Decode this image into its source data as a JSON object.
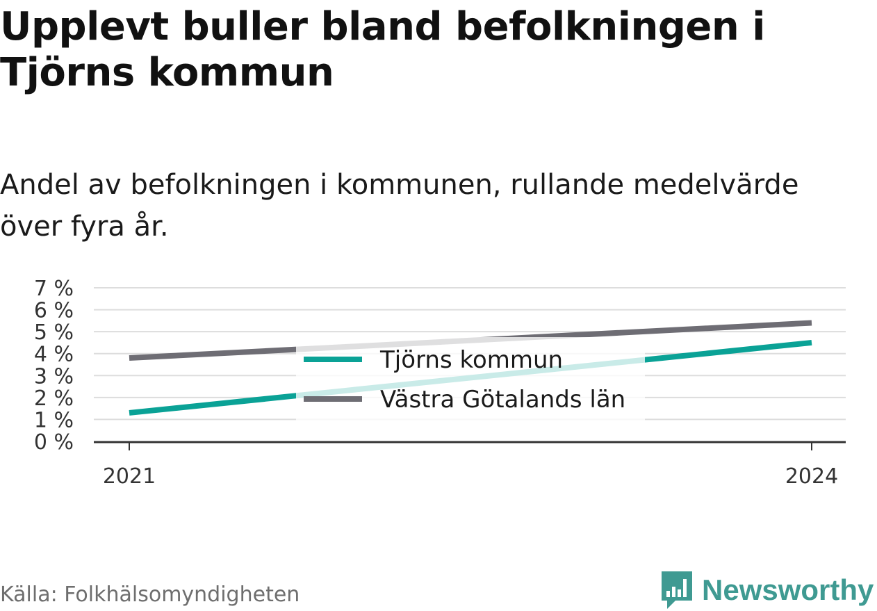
{
  "title": "Upplevt buller bland befolkningen i Tjörns kommun",
  "subtitle": "Andel av befolkningen i kommunen, rullande medelvärde över fyra år.",
  "source": "Källa: Folkhälsomyndigheten",
  "brand": {
    "name": "Newsworthy",
    "icon": "newsworthy-chart-icon",
    "color": "#3f9a92"
  },
  "chart_data": {
    "type": "line",
    "x": [
      2021,
      2024
    ],
    "x_tick_labels": [
      "2021",
      "2024"
    ],
    "ylim": [
      0,
      7
    ],
    "y_ticks": [
      0,
      1,
      2,
      3,
      4,
      5,
      6,
      7
    ],
    "y_tick_labels": [
      "0 %",
      "1 %",
      "2 %",
      "3 %",
      "4 %",
      "5 %",
      "6 %",
      "7 %"
    ],
    "grid": true,
    "legend_position": "center",
    "series": [
      {
        "name": "Tjörns kommun",
        "color": "#0aa296",
        "values": [
          1.3,
          4.5
        ]
      },
      {
        "name": "Västra Götalands län",
        "color": "#6e6d74",
        "values": [
          3.8,
          5.4
        ]
      }
    ]
  }
}
